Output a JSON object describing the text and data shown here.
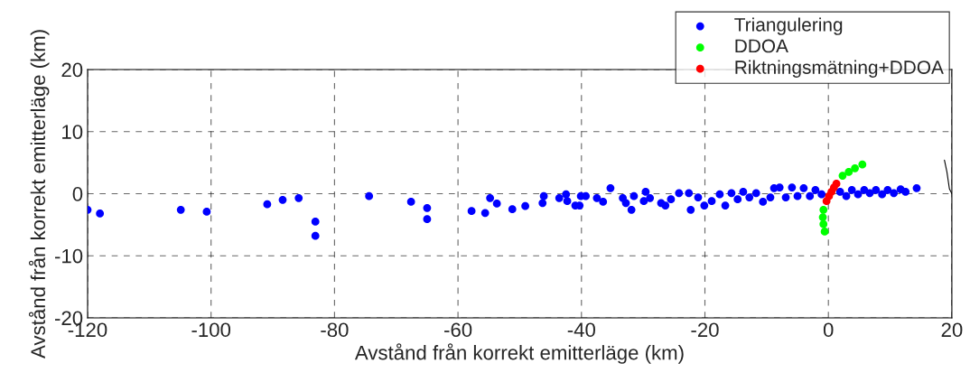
{
  "chart_data": {
    "type": "scatter",
    "xlabel": "Avstånd från korrekt emitterläge (km)",
    "ylabel": "Avstånd från korrekt emitterläge (km)",
    "xlim": [
      -120,
      20
    ],
    "xticks": [
      -120,
      -100,
      -80,
      -60,
      -40,
      -20,
      0,
      20
    ],
    "ylim": [
      -20,
      20
    ],
    "yticks": [
      -20,
      -10,
      0,
      10,
      20
    ],
    "grid": true,
    "legend": "top right",
    "marker": "circle",
    "series": [
      {
        "name": "Triangulering",
        "color": "#0000ff",
        "x": [
          -120.0,
          -118.0,
          -104.9,
          -100.7,
          -90.9,
          -88.4,
          -85.8,
          -83.1,
          -83.1,
          -74.4,
          -67.6,
          -65.0,
          -65.0,
          -57.8,
          -55.6,
          -54.8,
          -53.7,
          -51.2,
          -49.1,
          -46.1,
          -46.3,
          -43.6,
          -42.5,
          -42.3,
          -41.0,
          -40.3,
          -40.1,
          -39.3,
          -37.5,
          -36.5,
          -35.3,
          -33.3,
          -32.8,
          -31.9,
          -31.5,
          -29.6,
          -29.9,
          -28.9,
          -27.1,
          -26.4,
          -25.5,
          -24.2,
          -22.6,
          -22.3,
          -21.1,
          -20.1,
          -18.9,
          -17.6,
          -16.7,
          -15.7,
          -14.7,
          -13.8,
          -12.8,
          -11.7,
          -10.6,
          -9.4,
          -8.8,
          -7.9,
          -6.9,
          -5.9,
          -5.0,
          -4.0,
          -3.0,
          -2.1,
          -1.1,
          1.9,
          2.9,
          3.8,
          4.8,
          5.8,
          6.7,
          7.7,
          8.7,
          9.6,
          10.6,
          11.7,
          12.5,
          14.3
        ],
        "values": [
          -2.6,
          -3.2,
          -2.6,
          -2.9,
          -1.7,
          -1.0,
          -0.7,
          -4.5,
          -6.8,
          -0.4,
          -1.3,
          -2.3,
          -4.1,
          -2.8,
          -3.1,
          -0.7,
          -1.6,
          -2.5,
          -2.0,
          -0.4,
          -1.5,
          -0.7,
          -0.1,
          -1.2,
          -1.9,
          -1.9,
          -0.4,
          -0.4,
          -0.7,
          -1.3,
          0.9,
          -0.7,
          -1.5,
          -2.6,
          -0.4,
          0.3,
          -1.2,
          -0.7,
          -1.5,
          -1.9,
          -0.9,
          0.1,
          0.1,
          -2.6,
          -0.6,
          -1.9,
          -1.2,
          -0.1,
          -1.9,
          0.1,
          -0.9,
          0.3,
          -0.6,
          0.1,
          -1.3,
          -0.6,
          0.9,
          1.0,
          -0.6,
          1.0,
          -0.4,
          0.9,
          -0.4,
          0.6,
          -0.1,
          0.3,
          -0.4,
          0.6,
          -0.1,
          0.6,
          0.1,
          0.6,
          -0.1,
          0.6,
          0.1,
          0.7,
          0.3,
          0.9
        ]
      },
      {
        "name": "DDOA",
        "color": "#00ff00",
        "x": [
          -0.6,
          -0.8,
          -0.9,
          -0.8,
          -0.6,
          -0.2,
          0.4,
          1.3,
          2.3,
          3.3,
          4.3,
          5.5
        ],
        "values": [
          -6.1,
          -4.9,
          -3.8,
          -2.6,
          null,
          null,
          null,
          null,
          2.9,
          3.5,
          4.1,
          4.7
        ]
      },
      {
        "name": "Riktningsmätning+DDOA",
        "color": "#ff0000",
        "x": [
          -0.3,
          0.1,
          0.5,
          0.9,
          1.3
        ],
        "values": [
          -1.2,
          -0.4,
          0.3,
          1.0,
          1.6
        ]
      },
      {
        "type": "line",
        "marker": "none",
        "color": "#000000",
        "x": [
          18.8,
          19.2,
          19.6,
          20.0
        ],
        "values": [
          5.4,
          3.5,
          0.8,
          0
        ]
      }
    ]
  }
}
